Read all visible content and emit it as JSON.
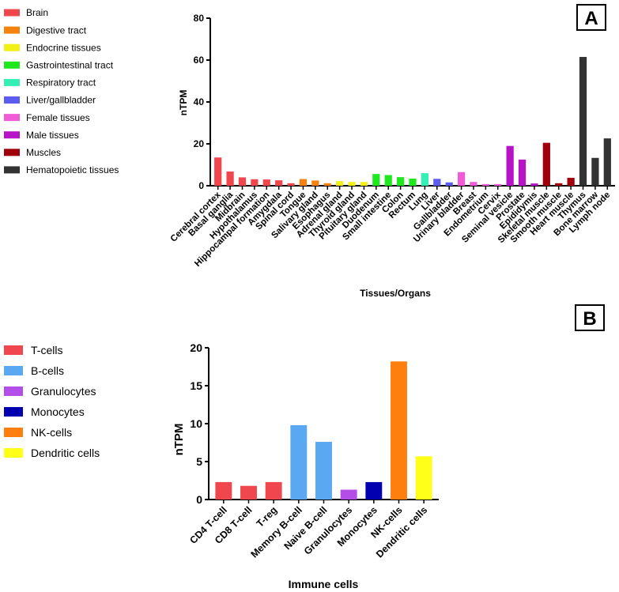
{
  "chart_data": [
    {
      "panel_label": "A",
      "type": "bar",
      "title": "",
      "xlabel": "Tissues/Organs",
      "ylabel": "nTPM",
      "ylim": [
        0,
        80
      ],
      "yticks": [
        0,
        20,
        40,
        60,
        80
      ],
      "legend_position": "top-left",
      "groups": [
        {
          "name": "Brain",
          "color": "#f0474f"
        },
        {
          "name": "Digestive tract",
          "color": "#f5820f"
        },
        {
          "name": "Endocrine tissues",
          "color": "#f2f016"
        },
        {
          "name": "Gastrointestinal tract",
          "color": "#1fe81f"
        },
        {
          "name": "Respiratory tract",
          "color": "#33efb3"
        },
        {
          "name": "Liver/gallbladder",
          "color": "#5c5cf0"
        },
        {
          "name": "Female tissues",
          "color": "#f05bd6"
        },
        {
          "name": "Male tissues",
          "color": "#b614c6"
        },
        {
          "name": "Muscles",
          "color": "#a0000c"
        },
        {
          "name": "Hematopoietic tissues",
          "color": "#333333"
        }
      ],
      "categories": [
        "Cerebral cortex",
        "Basal ganglia",
        "Midbrain",
        "Hypothalamus",
        "Hippocampal formation",
        "Amygdala",
        "Spinal cord",
        "Tongue",
        "Salivary gland",
        "Esophagus",
        "Adrenal gland",
        "Thyroid gland",
        "Pituitary gland",
        "Duodenum",
        "Small intestine",
        "Colon",
        "Rectum",
        "Lung",
        "Liver",
        "Gallbladder",
        "Urinary bladder",
        "Breast",
        "Endometrium",
        "Cervix",
        "Seminal vesicle",
        "Prostate",
        "Epididymis",
        "Skeletal muscle",
        "Smooth muscle",
        "Heart muscle",
        "Thymus",
        "Bone marrow",
        "Lymph node"
      ],
      "values": [
        13.5,
        6.8,
        4.0,
        3.1,
        3.0,
        2.6,
        1.2,
        3.2,
        2.5,
        1.2,
        2.2,
        1.8,
        1.8,
        5.6,
        5.1,
        4.1,
        3.4,
        6.0,
        3.3,
        1.6,
        6.5,
        1.8,
        0.8,
        0.8,
        19.0,
        12.5,
        1.1,
        20.5,
        1.2,
        3.8,
        61.5,
        13.3,
        22.6
      ],
      "group_index": [
        0,
        0,
        0,
        0,
        0,
        0,
        0,
        1,
        1,
        1,
        2,
        2,
        2,
        3,
        3,
        3,
        3,
        4,
        5,
        5,
        6,
        6,
        6,
        6,
        7,
        7,
        7,
        8,
        8,
        8,
        9,
        9,
        9
      ]
    },
    {
      "panel_label": "B",
      "type": "bar",
      "title": "",
      "xlabel": "Immune cells",
      "ylabel": "nTPM",
      "ylim": [
        0,
        20
      ],
      "yticks": [
        0,
        5,
        10,
        15,
        20
      ],
      "legend_position": "top-left",
      "groups": [
        {
          "name": "T-cells",
          "color": "#f0474f"
        },
        {
          "name": "B-cells",
          "color": "#5aa7f2"
        },
        {
          "name": "Granulocytes",
          "color": "#b44ee8"
        },
        {
          "name": "Monocytes",
          "color": "#0000b0"
        },
        {
          "name": "NK-cells",
          "color": "#ff7f0e"
        },
        {
          "name": "Dendritic cells",
          "color": "#ffff1a"
        }
      ],
      "categories": [
        "CD4 T-cell",
        "CD8 T-cell",
        "T-reg",
        "Memory B-cell",
        "Naive B-cell",
        "Granulocytes",
        "Monocytes",
        "NK-cells",
        "Dendritic cells"
      ],
      "values": [
        2.3,
        1.8,
        2.3,
        9.8,
        7.6,
        1.3,
        2.3,
        18.2,
        5.7
      ],
      "group_index": [
        0,
        0,
        0,
        1,
        1,
        2,
        3,
        4,
        5
      ]
    }
  ]
}
